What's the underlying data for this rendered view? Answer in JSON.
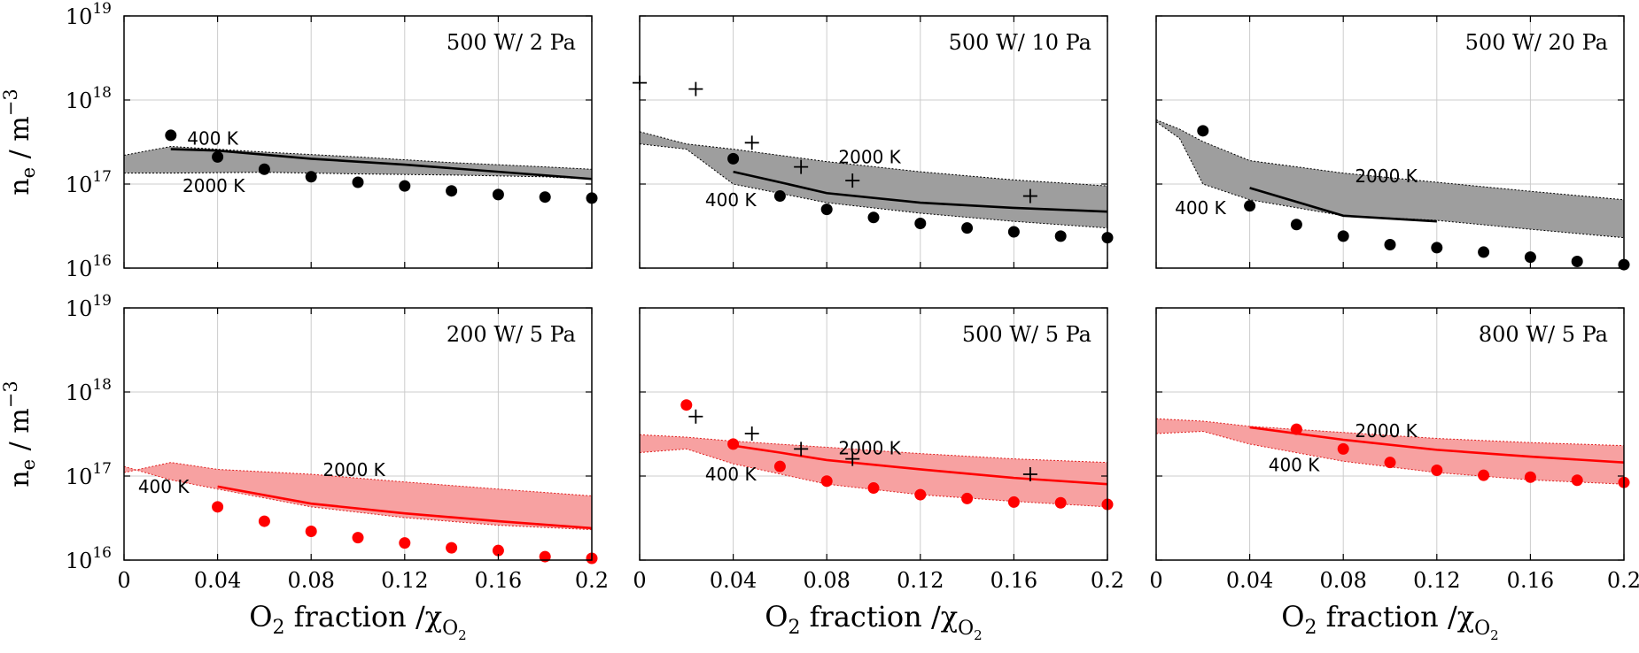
{
  "figure": {
    "ylabel_main": "n",
    "ylabel_sub": "e",
    "ylabel_unit": " / m",
    "ylabel_exp": "−3",
    "xlabel_main": "O",
    "xlabel_sub": "2",
    "xlabel_mid": " fraction /χ",
    "xlabel_chi_sub": "O",
    "xlabel_chi_subsub": "2",
    "xticks": [
      "0",
      "0.04",
      "0.08",
      "0.12",
      "0.16",
      "0.2"
    ],
    "yticks": [
      {
        "base": "10",
        "exp": "16"
      },
      {
        "base": "10",
        "exp": "17"
      },
      {
        "base": "10",
        "exp": "18"
      },
      {
        "base": "10",
        "exp": "19"
      }
    ]
  },
  "chart_data": [
    {
      "type": "line",
      "title": "500 W/ 2 Pa",
      "color": "#000000",
      "band_fill": "#9e9e9e",
      "xlim": [
        0,
        0.2
      ],
      "ylim": [
        1e+16,
        1e+19
      ],
      "yscale": "log",
      "grid": true,
      "band_400K": {
        "x": [
          0,
          0.02,
          0.06,
          0.1,
          0.14,
          0.18,
          0.2
        ],
        "y": [
          2.2e+17,
          2.8e+17,
          2.4e+17,
          2.1e+17,
          1.8e+17,
          1.6e+17,
          1.5e+17
        ]
      },
      "band_2000K": {
        "x": [
          0,
          0.02,
          0.06,
          0.1,
          0.14,
          0.18,
          0.2
        ],
        "y": [
          1.35e+17,
          1.35e+17,
          1.38e+17,
          1.32e+17,
          1.28e+17,
          1.22e+17,
          1.15e+17
        ]
      },
      "model": {
        "x": [
          0.02,
          0.04,
          0.08,
          0.12,
          0.16,
          0.2
        ],
        "y": [
          2.6e+17,
          2.5e+17,
          2e+17,
          1.7e+17,
          1.4e+17,
          1.15e+17
        ]
      },
      "circles": {
        "x": [
          0.02,
          0.04,
          0.06,
          0.08,
          0.1,
          0.12,
          0.14,
          0.16,
          0.18,
          0.2
        ],
        "y": [
          3.8e+17,
          2.1e+17,
          1.5e+17,
          1.22e+17,
          1.05e+17,
          9.5e+16,
          8.3e+16,
          7.5e+16,
          7e+16,
          6.8e+16
        ]
      },
      "crosses": {
        "x": [],
        "y": []
      },
      "annotations": [
        {
          "text": "400 K",
          "x": 0.027,
          "y": 3.5e+17
        },
        {
          "text": "2000 K",
          "x": 0.025,
          "y": 9.5e+16
        }
      ]
    },
    {
      "type": "line",
      "title": "500 W/ 10 Pa",
      "color": "#000000",
      "band_fill": "#9e9e9e",
      "xlim": [
        0,
        0.2
      ],
      "ylim": [
        1e+16,
        1e+19
      ],
      "yscale": "log",
      "grid": true,
      "band_400K": {
        "x": [
          0,
          0.02,
          0.04,
          0.08,
          0.12,
          0.16,
          0.2
        ],
        "y": [
          3e+17,
          2.6e+17,
          1e+17,
          6e+16,
          4.5e+16,
          3.6e+16,
          3e+16
        ]
      },
      "band_2000K": {
        "x": [
          0,
          0.02,
          0.04,
          0.08,
          0.12,
          0.16,
          0.2
        ],
        "y": [
          4.2e+17,
          3e+17,
          2.6e+17,
          1.85e+17,
          1.4e+17,
          1.12e+17,
          9.5e+16
        ]
      },
      "model": {
        "x": [
          0.04,
          0.06,
          0.08,
          0.12,
          0.16,
          0.2
        ],
        "y": [
          1.4e+17,
          1.05e+17,
          7.8e+16,
          6e+16,
          5.2e+16,
          4.7e+16
        ]
      },
      "circles": {
        "x": [
          0.04,
          0.06,
          0.08,
          0.1,
          0.12,
          0.14,
          0.16,
          0.18,
          0.2
        ],
        "y": [
          2e+17,
          7.2e+16,
          5e+16,
          4e+16,
          3.4e+16,
          3e+16,
          2.7e+16,
          2.4e+16,
          2.3e+16
        ]
      },
      "crosses": {
        "x": [
          0,
          0.024,
          0.048,
          0.069,
          0.091,
          0.167
        ],
        "y": [
          1.6e+18,
          1.35e+18,
          3.1e+17,
          1.6e+17,
          1.1e+17,
          7.2e+16
        ]
      },
      "annotations": [
        {
          "text": "2000 K",
          "x": 0.085,
          "y": 2.1e+17
        },
        {
          "text": "400 K",
          "x": 0.028,
          "y": 6.5e+16
        }
      ]
    },
    {
      "type": "line",
      "title": "500 W/ 20 Pa",
      "color": "#000000",
      "band_fill": "#9e9e9e",
      "xlim": [
        0,
        0.2
      ],
      "ylim": [
        1e+16,
        1e+19
      ],
      "yscale": "log",
      "grid": true,
      "band_400K": {
        "x": [
          0,
          0.01,
          0.02,
          0.04,
          0.08,
          0.12
        ],
        "y": [
          5.5e+17,
          3.5e+17,
          1e+17,
          6.5e+16,
          4.2e+16,
          3.7e+16
        ]
      },
      "band_2000K": {
        "x": [
          0,
          0.01,
          0.02,
          0.04,
          0.08,
          0.12,
          0.16,
          0.2
        ],
        "y": [
          5.8e+17,
          4.5e+17,
          3.2e+17,
          1.9e+17,
          1.35e+17,
          1.05e+17,
          8.2e+16,
          6.5e+16
        ]
      },
      "band_lower_ext": {
        "x": [
          0.12,
          0.16,
          0.2
        ],
        "y": [
          3.7e+16,
          2.9e+16,
          2.3e+16
        ]
      },
      "model": {
        "x": [
          0.04,
          0.08,
          0.12
        ],
        "y": [
          9e+16,
          4.2e+16,
          3.6e+16
        ]
      },
      "circles": {
        "x": [
          0.02,
          0.04,
          0.06,
          0.08,
          0.1,
          0.12,
          0.14,
          0.16,
          0.18,
          0.2
        ],
        "y": [
          4.3e+17,
          5.5e+16,
          3.3e+16,
          2.4e+16,
          1.9e+16,
          1.75e+16,
          1.55e+16,
          1.35e+16,
          1.2e+16,
          1.1e+16
        ]
      },
      "crosses": {
        "x": [],
        "y": []
      },
      "annotations": [
        {
          "text": "2000 K",
          "x": 0.085,
          "y": 1.25e+17
        },
        {
          "text": "400 K",
          "x": 0.008,
          "y": 5.2e+16
        }
      ]
    },
    {
      "type": "line",
      "title": "200 W/ 5 Pa",
      "color": "#ff0000",
      "band_fill": "#f7a1a1",
      "xlim": [
        0,
        0.2
      ],
      "ylim": [
        1e+16,
        1e+19
      ],
      "yscale": "log",
      "grid": true,
      "band_400K": {
        "x": [
          0,
          0.02,
          0.04,
          0.08,
          0.12,
          0.16,
          0.2
        ],
        "y": [
          1.3e+17,
          9e+16,
          7e+16,
          4.3e+16,
          3.2e+16,
          2.6e+16,
          2.3e+16
        ]
      },
      "band_2000K": {
        "x": [
          0,
          0.02,
          0.04,
          0.08,
          0.12,
          0.16,
          0.2
        ],
        "y": [
          1.1e+17,
          1.45e+17,
          1.2e+17,
          1.05e+17,
          8.5e+16,
          7e+16,
          5.8e+16
        ]
      },
      "model": {
        "x": [
          0.04,
          0.08,
          0.12,
          0.16,
          0.2
        ],
        "y": [
          7.5e+16,
          4.7e+16,
          3.6e+16,
          2.9e+16,
          2.4e+16
        ]
      },
      "circles": {
        "x": [
          0.04,
          0.06,
          0.08,
          0.1,
          0.12,
          0.14,
          0.16,
          0.18,
          0.2
        ],
        "y": [
          4.3e+16,
          2.9e+16,
          2.2e+16,
          1.85e+16,
          1.6e+16,
          1.4e+16,
          1.3e+16,
          1.1e+16,
          1.05e+16
        ]
      },
      "crosses": {
        "x": [],
        "y": []
      },
      "annotations": [
        {
          "text": "2000 K",
          "x": 0.085,
          "y": 1.18e+17
        },
        {
          "text": "400 K",
          "x": 0.006,
          "y": 7.5e+16
        }
      ]
    },
    {
      "type": "line",
      "title": "500 W/ 5 Pa",
      "color": "#ff0000",
      "band_fill": "#f7a1a1",
      "xlim": [
        0,
        0.2
      ],
      "ylim": [
        1e+16,
        1e+19
      ],
      "yscale": "log",
      "grid": true,
      "band_400K": {
        "x": [
          0,
          0.02,
          0.04,
          0.08,
          0.12,
          0.16,
          0.2
        ],
        "y": [
          1.9e+17,
          2.1e+17,
          1.4e+17,
          8e+16,
          6e+16,
          5e+16,
          4.3e+16
        ]
      },
      "band_2000K": {
        "x": [
          0,
          0.02,
          0.04,
          0.08,
          0.12,
          0.16,
          0.2
        ],
        "y": [
          3.1e+17,
          2.9e+17,
          2.6e+17,
          2.2e+17,
          1.85e+17,
          1.6e+17,
          1.45e+17
        ]
      },
      "model": {
        "x": [
          0.04,
          0.06,
          0.08,
          0.12,
          0.16,
          0.2
        ],
        "y": [
          2.3e+17,
          1.9e+17,
          1.55e+17,
          1.2e+17,
          9.5e+16,
          8e+16
        ]
      },
      "circles": {
        "x": [
          0.02,
          0.04,
          0.06,
          0.08,
          0.1,
          0.12,
          0.14,
          0.16,
          0.18,
          0.2
        ],
        "y": [
          7e+17,
          2.4e+17,
          1.3e+17,
          8.7e+16,
          7.2e+16,
          6e+16,
          5.4e+16,
          4.9e+16,
          4.8e+16,
          4.6e+16
        ]
      },
      "crosses": {
        "x": [
          0.024,
          0.048,
          0.069,
          0.091,
          0.167
        ],
        "y": [
          5.1e+17,
          3.2e+17,
          2.1e+17,
          1.6e+17,
          1.05e+17
        ]
      },
      "annotations": [
        {
          "text": "2000 K",
          "x": 0.085,
          "y": 2.15e+17
        },
        {
          "text": "400 K",
          "x": 0.028,
          "y": 1.05e+17
        }
      ]
    },
    {
      "type": "line",
      "title": "800 W/ 5 Pa",
      "color": "#ff0000",
      "band_fill": "#f7a1a1",
      "xlim": [
        0,
        0.2
      ],
      "ylim": [
        1e+16,
        1e+19
      ],
      "yscale": "log",
      "grid": true,
      "band_400K": {
        "x": [
          0,
          0.02,
          0.04,
          0.08,
          0.12,
          0.16,
          0.2
        ],
        "y": [
          3.2e+17,
          3.4e+17,
          2.4e+17,
          1.5e+17,
          1.1e+17,
          9e+16,
          8e+16
        ]
      },
      "band_2000K": {
        "x": [
          0,
          0.02,
          0.04,
          0.08,
          0.12,
          0.16,
          0.2
        ],
        "y": [
          4.8e+17,
          4.5e+17,
          3.9e+17,
          3.3e+17,
          2.8e+17,
          2.5e+17,
          2.3e+17
        ]
      },
      "model": {
        "x": [
          0.04,
          0.08,
          0.12,
          0.16,
          0.2
        ],
        "y": [
          3.8e+17,
          2.7e+17,
          2.05e+17,
          1.7e+17,
          1.45e+17
        ]
      },
      "circles": {
        "x": [
          0.06,
          0.08,
          0.1,
          0.12,
          0.14,
          0.16,
          0.18,
          0.2
        ],
        "y": [
          3.6e+17,
          2.1e+17,
          1.45e+17,
          1.17e+17,
          1.02e+17,
          9.7e+16,
          8.9e+16,
          8.4e+16
        ]
      },
      "crosses": {
        "x": [],
        "y": []
      },
      "annotations": [
        {
          "text": "2000 K",
          "x": 0.085,
          "y": 3.45e+17
        },
        {
          "text": "400 K",
          "x": 0.048,
          "y": 1.35e+17
        }
      ]
    }
  ]
}
